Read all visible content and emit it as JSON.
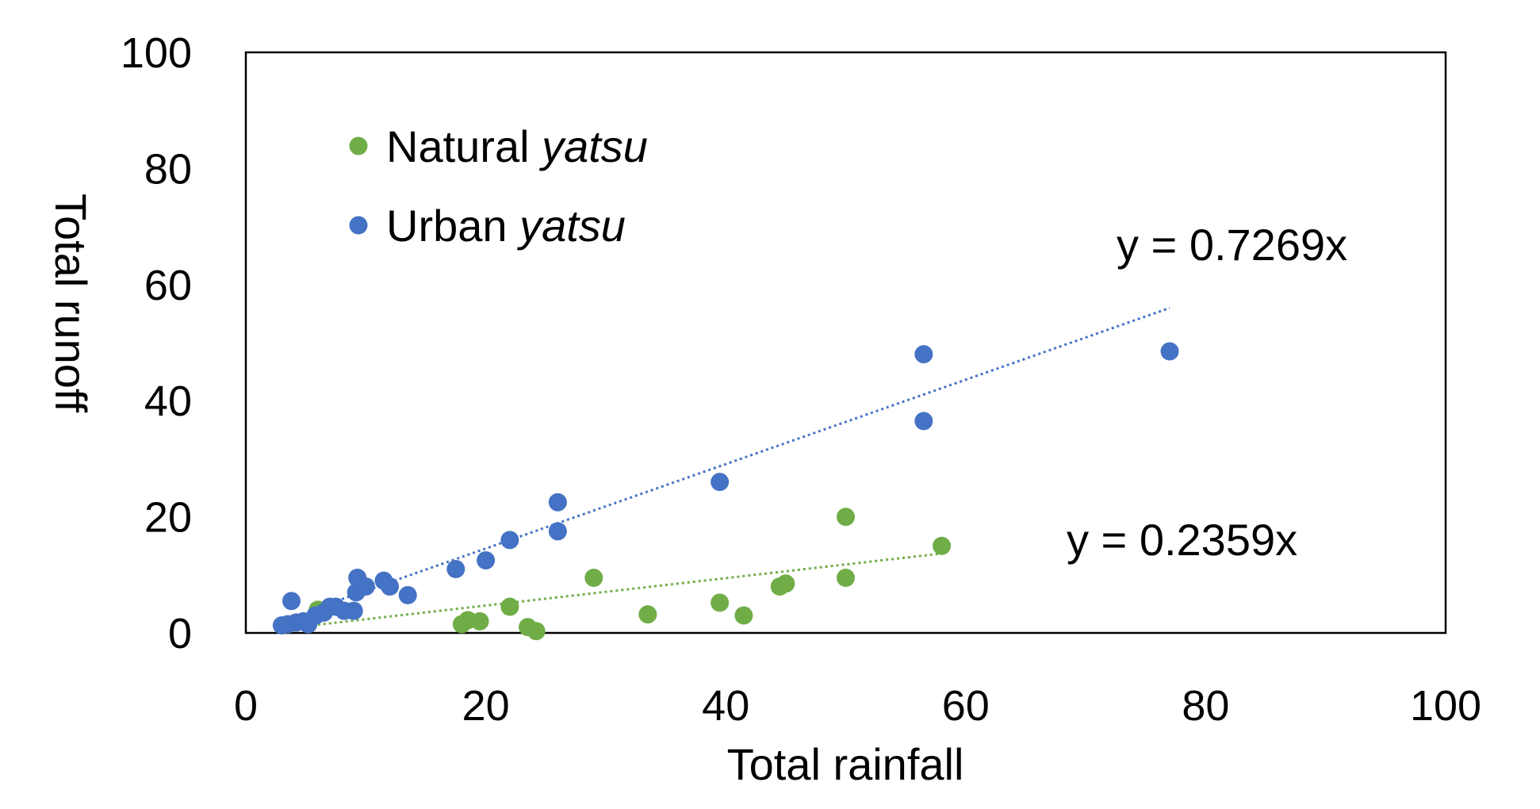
{
  "chart_data": {
    "type": "scatter",
    "xlabel": "Total rainfall",
    "ylabel": "Total runoff",
    "xlim": [
      0,
      100
    ],
    "ylim": [
      0,
      100
    ],
    "x_ticks": [
      "0",
      "20",
      "40",
      "60",
      "80",
      "100"
    ],
    "y_ticks": [
      "0",
      "20",
      "40",
      "60",
      "80",
      "100"
    ],
    "grid": false,
    "legend_placement": "top-left",
    "series": [
      {
        "name": "Natural yatsu",
        "name_plain": "Natural",
        "name_italic": "yatsu",
        "color": "#70ad47",
        "trendline_slope": 0.2359,
        "trendline_range": [
          6,
          58
        ],
        "equation": "y = 0.2359x",
        "points": [
          [
            6,
            4
          ],
          [
            18,
            1.5
          ],
          [
            18.5,
            2.2
          ],
          [
            19.5,
            2
          ],
          [
            22,
            4.5
          ],
          [
            23.5,
            1
          ],
          [
            24.2,
            0.3
          ],
          [
            29,
            9.5
          ],
          [
            33.5,
            3.2
          ],
          [
            39.5,
            5.2
          ],
          [
            41.5,
            3
          ],
          [
            44.5,
            8
          ],
          [
            45,
            8.5
          ],
          [
            50,
            9.5
          ],
          [
            50,
            20
          ],
          [
            58,
            15
          ]
        ]
      },
      {
        "name": "Urban yatsu",
        "name_plain": "Urban",
        "name_italic": "yatsu",
        "color": "#4472c4",
        "trendline_slope": 0.7269,
        "trendline_range": [
          8,
          77
        ],
        "equation": "y = 0.7269x",
        "points": [
          [
            3,
            1.3
          ],
          [
            3.5,
            1.5
          ],
          [
            3.8,
            5.5
          ],
          [
            4.2,
            1.8
          ],
          [
            4.8,
            2
          ],
          [
            5.2,
            1.5
          ],
          [
            5.8,
            3
          ],
          [
            6.5,
            3.5
          ],
          [
            7,
            4.5
          ],
          [
            7.5,
            4.5
          ],
          [
            8.2,
            3.8
          ],
          [
            9,
            3.8
          ],
          [
            9.2,
            7
          ],
          [
            9.3,
            9.5
          ],
          [
            10,
            8
          ],
          [
            11.5,
            9
          ],
          [
            12,
            8
          ],
          [
            13.5,
            6.5
          ],
          [
            17.5,
            11
          ],
          [
            20,
            12.5
          ],
          [
            22,
            16
          ],
          [
            26,
            22.5
          ],
          [
            26,
            17.5
          ],
          [
            39.5,
            26
          ],
          [
            56.5,
            48
          ],
          [
            56.5,
            36.5
          ],
          [
            77,
            48.5
          ]
        ]
      }
    ]
  }
}
